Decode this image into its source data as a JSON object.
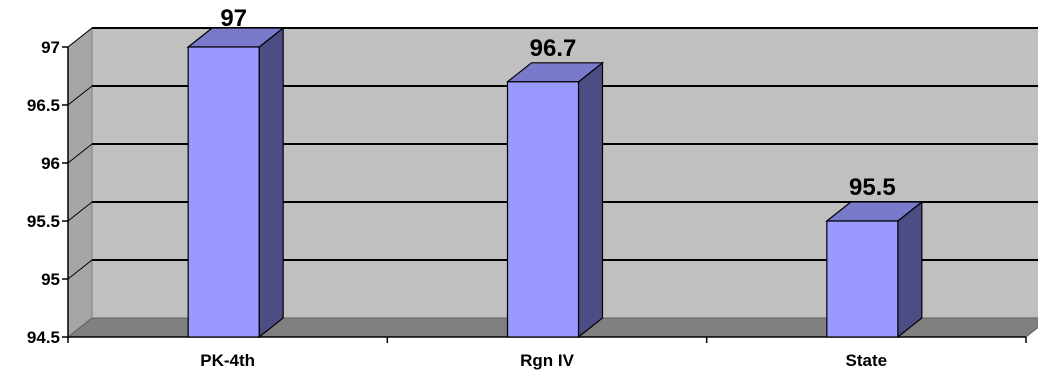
{
  "chart_data": {
    "type": "bar",
    "categories": [
      "PK-4th",
      "Rgn IV",
      "State"
    ],
    "values": [
      97,
      96.7,
      95.5
    ],
    "data_labels": [
      "97",
      "96.7",
      "95.5"
    ],
    "title": "",
    "xlabel": "",
    "ylabel": "",
    "ylim": [
      94.5,
      97
    ],
    "yticks": [
      94.5,
      95,
      95.5,
      96,
      96.5,
      97
    ],
    "ytick_labels": [
      "94.5",
      "95",
      "95.5",
      "96",
      "96.5",
      "97"
    ],
    "grid": true,
    "legend": "none",
    "style": "3d-column",
    "colors": {
      "bar_front": "#9999ff",
      "bar_side": "#4d4d86",
      "bar_top": "#7a7acc",
      "wall": "#c0c0c0",
      "floor": "#808080",
      "gridline": "#000000"
    }
  }
}
